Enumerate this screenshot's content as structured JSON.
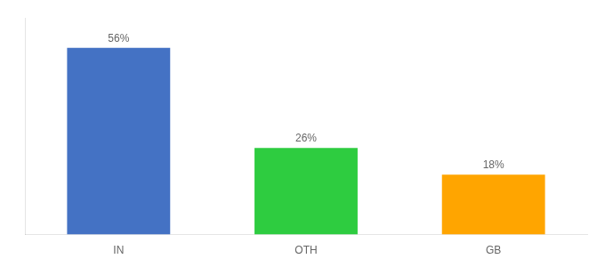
{
  "chart_data": {
    "type": "bar",
    "categories": [
      "IN",
      "OTH",
      "GB"
    ],
    "values": [
      56,
      26,
      18
    ],
    "value_labels": [
      "56%",
      "26%",
      "18%"
    ],
    "colors": [
      "#4472C4",
      "#2ECC40",
      "#FFA500"
    ],
    "ylim": [
      0,
      65
    ],
    "data_labels": true,
    "tick_labels": "x",
    "grid": false
  }
}
